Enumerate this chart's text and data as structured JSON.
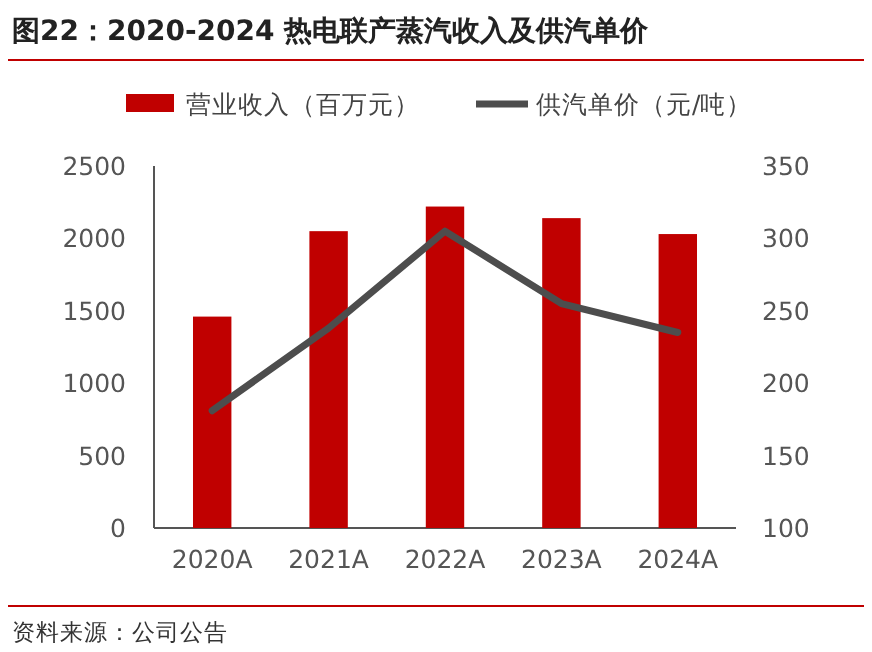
{
  "chart_data": {
    "type": "bar",
    "title": "图22：2020-2024 热电联产蒸汽收入及供汽单价",
    "categories": [
      "2020A",
      "2021A",
      "2022A",
      "2023A",
      "2024A"
    ],
    "series": [
      {
        "name": "营业收入（百万元）",
        "color": "#c00000",
        "values": [
          1460,
          2050,
          2220,
          2140,
          2030
        ]
      },
      {
        "name": "供汽单价（元/吨）",
        "type": "line",
        "axis": "y2",
        "color": "#4d4d4d",
        "values": [
          181,
          238,
          305,
          255,
          235
        ]
      }
    ],
    "ylim": [
      0,
      2500
    ],
    "yticks": [
      0,
      500,
      1000,
      1500,
      2000,
      2500
    ],
    "y2lim": [
      100,
      350
    ],
    "y2ticks": [
      100,
      150,
      200,
      250,
      300,
      350
    ],
    "legend": "top",
    "annotations": [
      "资料来源：公司公告"
    ]
  }
}
